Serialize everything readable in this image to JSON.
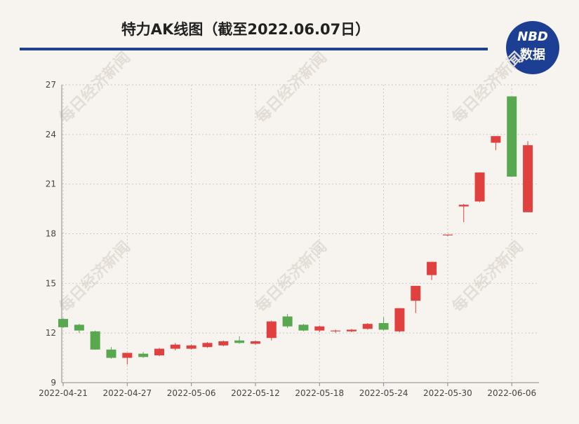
{
  "chart_data": {
    "type": "candlestick",
    "title": "特力AK线图（截至2022.06.07日）",
    "logo": [
      "NBD",
      "数据"
    ],
    "watermark": "每日经济新闻",
    "categories": [
      "2022-04-21",
      null,
      null,
      null,
      "2022-04-27",
      null,
      null,
      null,
      "2022-05-06",
      null,
      null,
      null,
      "2022-05-12",
      null,
      null,
      null,
      "2022-05-18",
      null,
      null,
      null,
      "2022-05-24",
      null,
      null,
      null,
      "2022-05-30",
      null,
      null,
      null,
      "2022-06-06",
      null
    ],
    "open": [
      12.85,
      12.5,
      12.1,
      11.0,
      10.5,
      10.75,
      10.65,
      11.05,
      11.05,
      11.15,
      11.25,
      11.55,
      11.35,
      11.7,
      13.0,
      12.5,
      12.15,
      12.1,
      12.1,
      12.25,
      12.6,
      12.1,
      13.95,
      15.5,
      17.9,
      19.65,
      19.95,
      23.5,
      26.3,
      19.3
    ],
    "high": [
      12.9,
      12.55,
      12.15,
      11.15,
      10.8,
      10.85,
      11.1,
      11.4,
      11.3,
      11.45,
      11.55,
      11.8,
      11.55,
      12.75,
      13.15,
      12.55,
      12.45,
      12.2,
      12.25,
      12.6,
      12.95,
      13.5,
      14.85,
      16.3,
      17.95,
      19.8,
      21.7,
      23.9,
      26.3,
      23.6
    ],
    "low": [
      12.3,
      12.0,
      11.0,
      10.45,
      10.1,
      10.5,
      10.6,
      10.95,
      11.0,
      11.1,
      11.2,
      11.35,
      11.3,
      11.55,
      12.3,
      12.1,
      12.05,
      12.0,
      12.05,
      12.2,
      12.15,
      12.05,
      13.2,
      15.2,
      17.85,
      18.7,
      19.9,
      23.05,
      21.45,
      19.3
    ],
    "close": [
      12.35,
      12.15,
      11.0,
      10.5,
      10.8,
      10.55,
      11.05,
      11.3,
      11.25,
      11.4,
      11.5,
      11.4,
      11.5,
      12.7,
      12.4,
      12.15,
      12.4,
      12.15,
      12.2,
      12.55,
      12.2,
      13.5,
      14.85,
      16.3,
      17.95,
      19.75,
      21.7,
      23.9,
      21.45,
      23.35
    ],
    "up_color": "#e0413e",
    "down_color": "#58a84f",
    "ylim": [
      9,
      27
    ],
    "yticks": [
      9,
      12,
      15,
      18,
      21,
      24,
      27
    ],
    "grid": true
  }
}
